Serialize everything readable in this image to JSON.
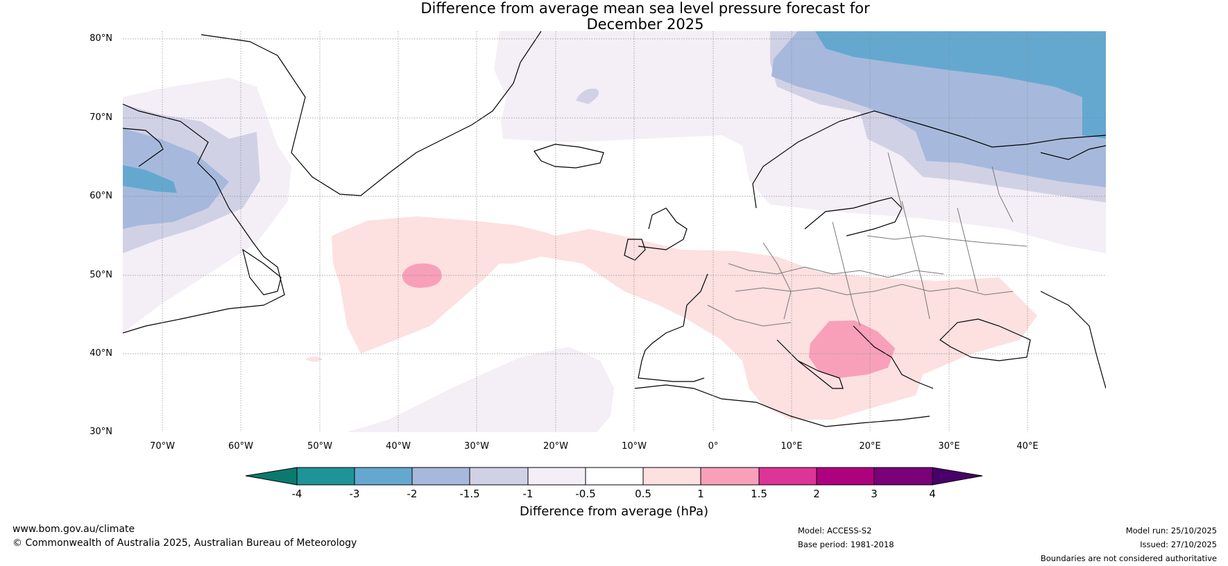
{
  "title": {
    "line1": "Difference from average mean sea level pressure forecast for",
    "line2": "December 2025"
  },
  "map": {
    "latitude_labels": [
      "80°N",
      "70°N",
      "60°N",
      "50°N",
      "40°N",
      "30°N"
    ],
    "longitude_labels": [
      "70°W",
      "60°W",
      "50°W",
      "40°W",
      "30°W",
      "20°W",
      "10°W",
      "0°",
      "10°E",
      "20°E",
      "30°E",
      "40°E"
    ],
    "extent": {
      "lon_min": -75,
      "lon_max": 50,
      "lat_min": 30,
      "lat_max": 81
    }
  },
  "colorbar": {
    "ticks": [
      "-4",
      "-3",
      "-2",
      "-1.5",
      "-1",
      "-0.5",
      "0.5",
      "1",
      "1.5",
      "2",
      "3",
      "4"
    ],
    "colors": [
      "#1f9398",
      "#64a8d0",
      "#a6b9dc",
      "#d1d1e6",
      "#f4eef6",
      "#ffffff",
      "#fde0e0",
      "#f8a0ba",
      "#dd3497",
      "#ae017e",
      "#7a0177"
    ],
    "extend_low_color": "#0a7a6f",
    "extend_high_color": "#49006a",
    "label": "Difference from average (hPa)"
  },
  "footer": {
    "website": "www.bom.gov.au/climate",
    "copyright": "© Commonwealth of Australia 2025, Australian Bureau of Meteorology",
    "model": "Model: ACCESS-S2",
    "base_period": "Base period: 1981-2018",
    "model_run": "Model run: 25/10/2025",
    "issued": "Issued: 27/10/2025",
    "disclaimer": "Boundaries are not considered authoritative"
  }
}
